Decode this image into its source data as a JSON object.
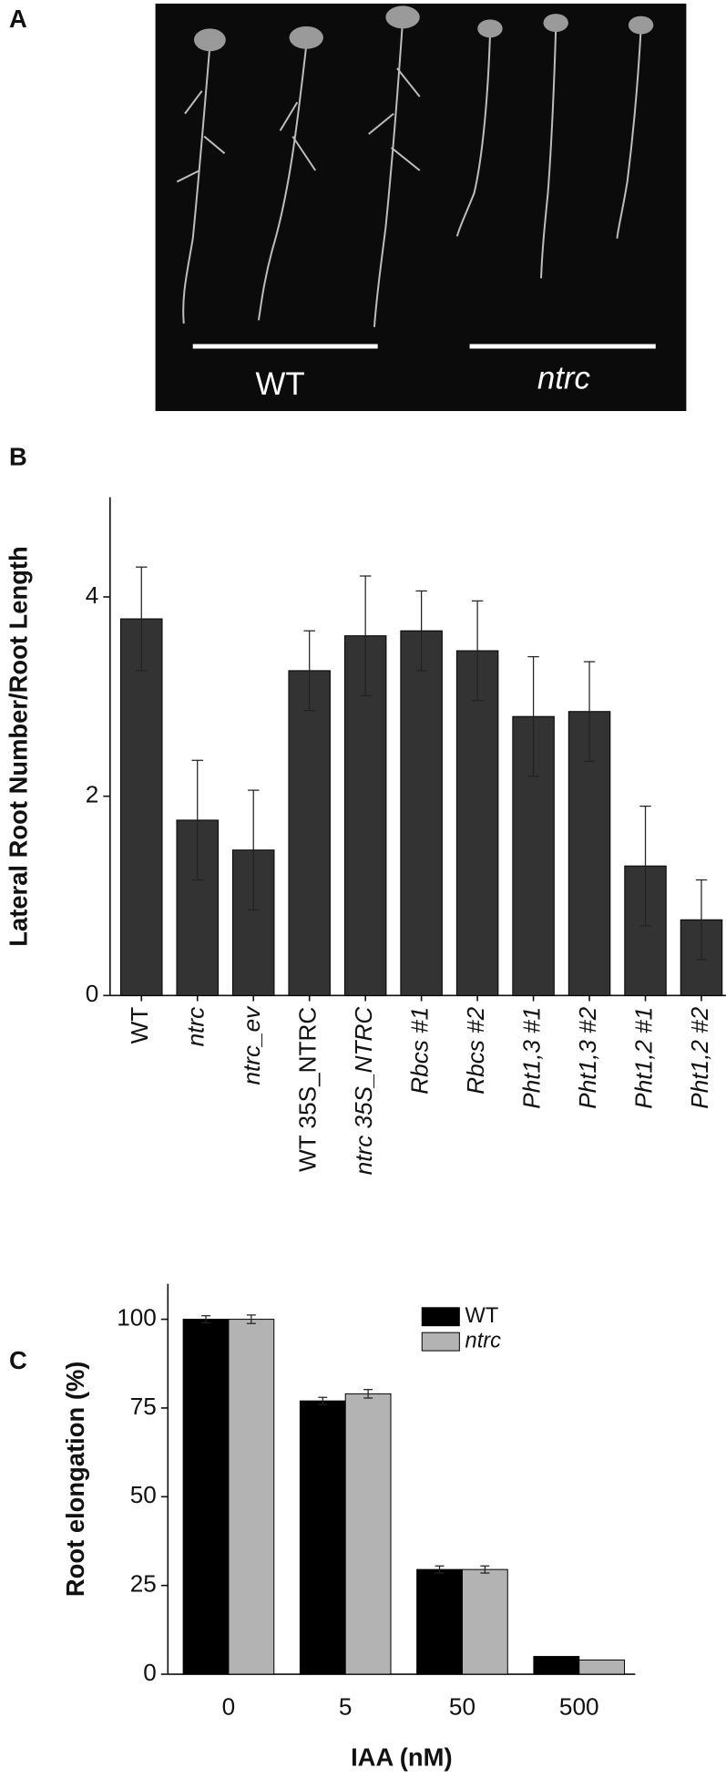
{
  "panel_labels": [
    "A",
    "B",
    "C"
  ],
  "photo": {
    "labels": [
      "WT",
      "ntrc"
    ]
  },
  "chart_data": [
    {
      "type": "bar",
      "y_label": "Lateral Root Number/Root Length",
      "categories": [
        "WT",
        "ntrc",
        "ntrc_ev",
        "WT 35S_NTRC",
        "ntrc 35S_NTRC",
        "Rbcs #1",
        "Rbcs #2",
        "Pht1,3 #1",
        "Pht1,3 #2",
        "Pht1,2 #1",
        "Pht1,2 #2"
      ],
      "italic_categories": [
        1,
        2,
        4,
        5,
        6,
        7,
        8,
        9,
        10
      ],
      "values": [
        3.78,
        1.76,
        1.46,
        3.26,
        3.61,
        3.66,
        3.46,
        2.8,
        2.85,
        1.3,
        0.76
      ],
      "errors": [
        0.52,
        0.6,
        0.6,
        0.4,
        0.6,
        0.4,
        0.5,
        0.6,
        0.5,
        0.6,
        0.4
      ],
      "color": "#333333",
      "ylim": [
        0,
        5
      ],
      "yticks": [
        0,
        2,
        4
      ]
    },
    {
      "type": "grouped_bar",
      "x_label": "IAA (nM)",
      "y_label": "Root elongation (%)",
      "categories": [
        "0",
        "5",
        "50",
        "500"
      ],
      "series": [
        {
          "name": "WT",
          "color": "#000000",
          "values": [
            100,
            77,
            29.5,
            5
          ],
          "errors": [
            1,
            1,
            1,
            0
          ]
        },
        {
          "name": "ntrc",
          "color": "#b3b3b3",
          "values": [
            100,
            79,
            29.5,
            4
          ],
          "errors": [
            1.2,
            1.2,
            1,
            0
          ],
          "italic": true
        }
      ],
      "ylim": [
        0,
        110
      ],
      "yticks": [
        0,
        25,
        50,
        75,
        100
      ],
      "legend": "upper right"
    }
  ]
}
